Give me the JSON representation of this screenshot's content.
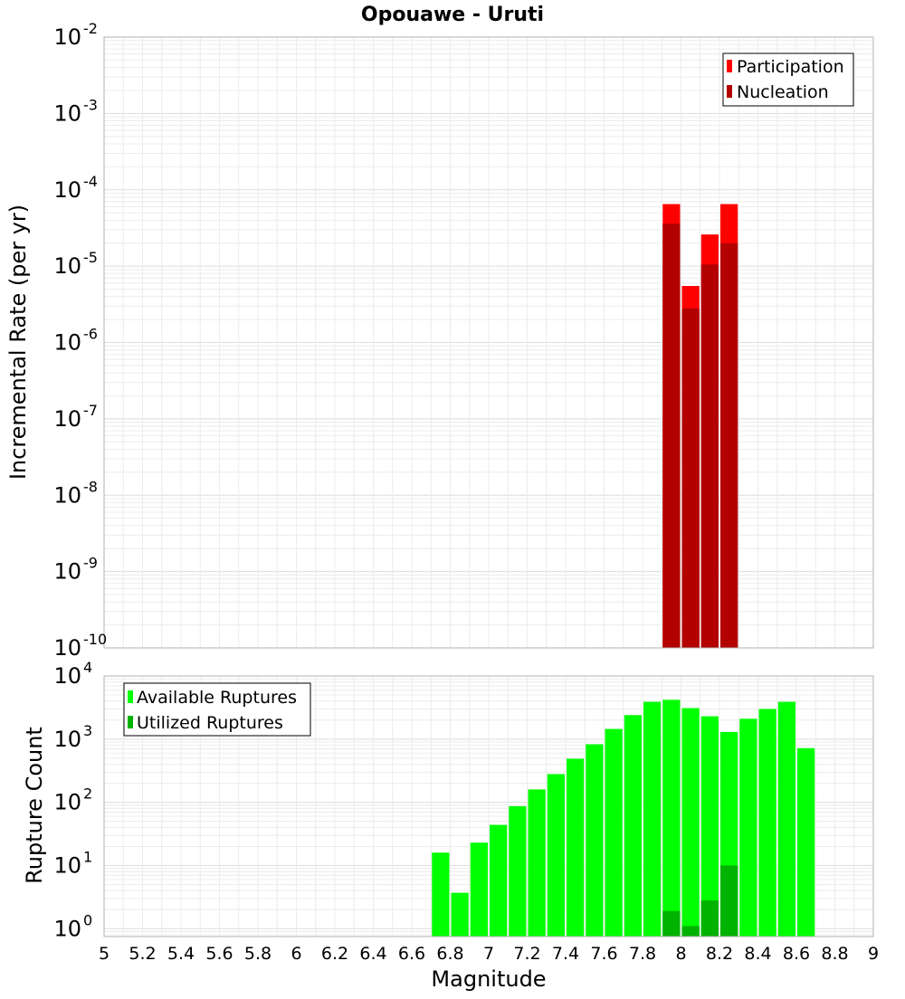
{
  "chart_data": [
    {
      "type": "bar",
      "title": "Opouawe - Uruti",
      "xlabel": "",
      "ylabel": "Incremental Rate (per yr)",
      "yscale": "log",
      "ylim": [
        1e-10,
        0.01
      ],
      "xlim": [
        5,
        9
      ],
      "y_tick_exponents": [
        -10,
        -9,
        -8,
        -7,
        -6,
        -5,
        -4,
        -3,
        -2
      ],
      "grid": true,
      "legend_position": "top-right",
      "bin_width": 0.1,
      "x": [
        7.95,
        8.05,
        8.15,
        8.25
      ],
      "series": [
        {
          "name": "Participation",
          "color": "#ff0000",
          "values": [
            6.5e-05,
            5.5e-06,
            2.6e-05,
            6.5e-05
          ]
        },
        {
          "name": "Nucleation",
          "color": "#b30000",
          "values": [
            3.6e-05,
            2.8e-06,
            1.05e-05,
            2e-05
          ]
        }
      ]
    },
    {
      "type": "bar",
      "title": "",
      "xlabel": "Magnitude",
      "ylabel": "Rupture Count",
      "yscale": "log",
      "ylim": [
        0.75,
        10000
      ],
      "xlim": [
        5,
        9
      ],
      "y_tick_exponents": [
        0,
        1,
        2,
        3,
        4
      ],
      "x_ticks": [
        "5",
        "5.2",
        "5.4",
        "5.6",
        "5.8",
        "6",
        "6.2",
        "6.4",
        "6.6",
        "6.8",
        "7",
        "7.2",
        "7.4",
        "7.6",
        "7.8",
        "8",
        "8.2",
        "8.4",
        "8.6",
        "8.8",
        "9"
      ],
      "grid": true,
      "legend_position": "top-left",
      "bin_width": 0.1,
      "series": [
        {
          "name": "Available Ruptures",
          "color": "#00ff00",
          "x": [
            6.75,
            6.85,
            6.95,
            7.05,
            7.15,
            7.25,
            7.35,
            7.45,
            7.55,
            7.65,
            7.75,
            7.85,
            7.95,
            8.05,
            8.15,
            8.25,
            8.35,
            8.45,
            8.55,
            8.65
          ],
          "values": [
            16,
            3.7,
            23,
            44,
            87,
            160,
            280,
            490,
            830,
            1450,
            2400,
            3900,
            4200,
            3100,
            2300,
            1300,
            2100,
            3000,
            3900,
            720
          ]
        },
        {
          "name": "Utilized Ruptures",
          "color": "#00b300",
          "x": [
            7.95,
            8.05,
            8.15,
            8.25
          ],
          "values": [
            1.9,
            1.1,
            2.8,
            10
          ]
        }
      ]
    }
  ]
}
